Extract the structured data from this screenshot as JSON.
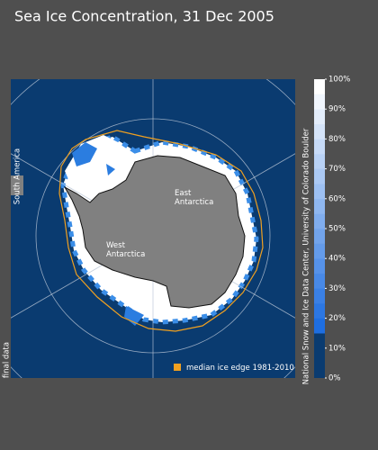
{
  "header": {
    "title": "Sea Ice Concentration, 31 Dec 2005"
  },
  "map": {
    "south_america": "South America",
    "east_antarctica": [
      "East",
      "Antarctica"
    ],
    "west_antarctica": [
      "West",
      "Antarctica"
    ],
    "legend": "median ice edge 1981-2010",
    "status": "final data",
    "credit": "National Snow and Ice Data Center, University of Colorado Boulder"
  },
  "colorbar": {
    "ticks": [
      {
        "value": 0,
        "label": "0%"
      },
      {
        "value": 10,
        "label": "10%"
      },
      {
        "value": 20,
        "label": "20%"
      },
      {
        "value": 30,
        "label": "30%"
      },
      {
        "value": 40,
        "label": "40%"
      },
      {
        "value": 50,
        "label": "50%"
      },
      {
        "value": 60,
        "label": "60%"
      },
      {
        "value": 70,
        "label": "70%"
      },
      {
        "value": 80,
        "label": "80%"
      },
      {
        "value": 90,
        "label": "90%"
      },
      {
        "value": 100,
        "label": "100%"
      }
    ]
  }
}
